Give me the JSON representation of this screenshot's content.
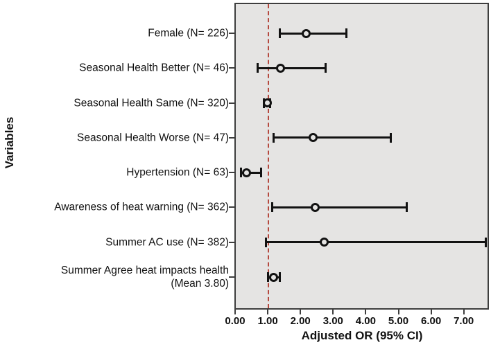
{
  "figure_title": "",
  "chart_data": {
    "type": "scatter",
    "subtype": "forest-plot-odds-ratios-with-95ci",
    "x_axis": {
      "label": "Adjusted OR (95% CI)",
      "ticks": [
        "0.00",
        "1.00",
        "2.00",
        "3.00",
        "4.00",
        "5.00",
        "6.00",
        "7.00"
      ],
      "tick_values": [
        0,
        1,
        2,
        3,
        4,
        5,
        6,
        7
      ],
      "min": 0,
      "max": 7.73,
      "reference_line_value": 1.0
    },
    "y_axis": {
      "label": "Variables"
    },
    "legend": "none",
    "grid": "off",
    "rows": [
      {
        "label": "Female (N= 226)",
        "or": 2.18,
        "ci_low": 1.38,
        "ci_high": 3.41
      },
      {
        "label": "Seasonal Health Better (N= 46)",
        "or": 1.4,
        "ci_low": 0.68,
        "ci_high": 2.78
      },
      {
        "label": "Seasonal Health Same (N= 320)",
        "or": 0.98,
        "ci_low": 0.89,
        "ci_high": 1.07
      },
      {
        "label": "Seasonal Health Worse (N= 47)",
        "or": 2.39,
        "ci_low": 1.18,
        "ci_high": 4.76
      },
      {
        "label": "Hypertension (N= 63)",
        "or": 0.36,
        "ci_low": 0.17,
        "ci_high": 0.79
      },
      {
        "label": "Awareness of heat warning (N= 362)",
        "or": 2.45,
        "ci_low": 1.14,
        "ci_high": 5.25
      },
      {
        "label": "Summer AC use (N= 382)",
        "or": 2.73,
        "ci_low": 0.95,
        "ci_high": 7.68
      },
      {
        "label": "Summer Agree heat impacts health\n(Mean 3.80)",
        "or": 1.17,
        "ci_low": 1.0,
        "ci_high": 1.36
      }
    ],
    "colors": {
      "plot_background": "#e5e4e3",
      "plot_border": "#3e3e3e",
      "marker_and_ci": "#121212",
      "reference_line": "#b5493f",
      "text": "#111111"
    }
  }
}
